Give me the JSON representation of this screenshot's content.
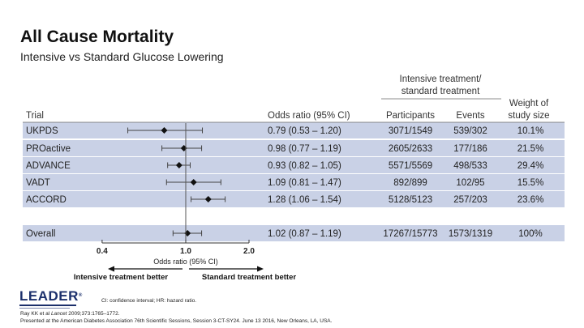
{
  "header": {
    "title": "All Cause Mortality",
    "subtitle": "Intensive vs Standard Glucose Lowering"
  },
  "chart_data": {
    "type": "forest",
    "headers": {
      "group": [
        "Intensive treatment/",
        "standard treatment"
      ],
      "trial": "Trial",
      "odds_ratio": "Odds ratio (95% CI)",
      "participants": "Participants",
      "events": "Events",
      "weight": [
        "Weight of",
        "study size"
      ]
    },
    "rows": [
      {
        "trial": "UKPDS",
        "or": 0.79,
        "lo": 0.53,
        "hi": 1.2,
        "ci_text": "0.79 (0.53 – 1.20)",
        "participants": "3071/1549",
        "events": "539/302",
        "weight": "10.1%"
      },
      {
        "trial": "PROactive",
        "or": 0.98,
        "lo": 0.77,
        "hi": 1.19,
        "ci_text": "0.98 (0.77 – 1.19)",
        "participants": "2605/2633",
        "events": "177/186",
        "weight": "21.5%"
      },
      {
        "trial": "ADVANCE",
        "or": 0.93,
        "lo": 0.82,
        "hi": 1.05,
        "ci_text": "0.93 (0.82 – 1.05)",
        "participants": "5571/5569",
        "events": "498/533",
        "weight": "29.4%"
      },
      {
        "trial": "VADT",
        "or": 1.09,
        "lo": 0.81,
        "hi": 1.47,
        "ci_text": "1.09 (0.81 – 1.47)",
        "participants": "892/899",
        "events": "102/95",
        "weight": "15.5%"
      },
      {
        "trial": "ACCORD",
        "or": 1.28,
        "lo": 1.06,
        "hi": 1.54,
        "ci_text": "1.28 (1.06 – 1.54)",
        "participants": "5128/5123",
        "events": "257/203",
        "weight": "23.6%"
      }
    ],
    "overall": {
      "trial": "Overall",
      "or": 1.02,
      "lo": 0.87,
      "hi": 1.19,
      "ci_text": "1.02 (0.87 – 1.19)",
      "participants": "17267/15773",
      "events": "1573/1319",
      "weight": "100%"
    },
    "x_axis": {
      "ticks": [
        0.4,
        1.0,
        2.0
      ],
      "tick_labels": [
        "0.4",
        "1.0",
        "2.0"
      ],
      "label": "Odds ratio (95% CI)",
      "reference": 1.0
    },
    "direction_labels": {
      "left": "Intensive treatment better",
      "right": "Standard treatment better"
    },
    "colors": {
      "row_band": "#c9d1e6",
      "marker": "#111111",
      "line": "#444444"
    }
  },
  "logo": {
    "text": "LEADER",
    "mark": "®"
  },
  "footnote": "CI: confidence interval; HR: hazard ratio.",
  "reference": {
    "authors": "Ray KK et al ",
    "journal": "Lancet",
    "details": " 2009;373:1765–1772."
  },
  "presented": "Presented at the American Diabetes Association 76th Scientific Sessions, Session 3-CT-SY24. June 13 2016, New Orleans, LA, USA."
}
